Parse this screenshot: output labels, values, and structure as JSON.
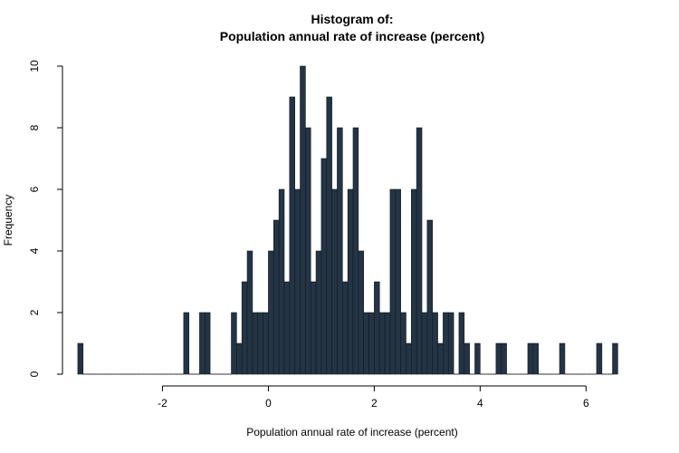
{
  "chart_data": {
    "type": "bar",
    "title_line1": "Histogram of:",
    "title_line2": "Population annual rate of increase (percent)",
    "xlabel": "Population annual rate of increase (percent)",
    "ylabel": "Frequency",
    "xlim": [
      -3.65,
      6.85
    ],
    "ylim": [
      0,
      10
    ],
    "x_ticks": [
      -2,
      0,
      2,
      4,
      6
    ],
    "y_ticks": [
      0,
      2,
      4,
      6,
      8,
      10
    ],
    "bin_start": -3.6,
    "bin_width": 0.1,
    "values": [
      1,
      0,
      0,
      0,
      0,
      0,
      0,
      0,
      0,
      0,
      0,
      0,
      0,
      0,
      0,
      0,
      0,
      0,
      0,
      0,
      2,
      0,
      0,
      2,
      2,
      0,
      0,
      0,
      0,
      2,
      1,
      3,
      4,
      2,
      2,
      2,
      4,
      5,
      6,
      3,
      9,
      6,
      10,
      8,
      3,
      4,
      7,
      9,
      6,
      8,
      3,
      6,
      8,
      4,
      2,
      2,
      3,
      2,
      2,
      6,
      6,
      2,
      1,
      6,
      8,
      2,
      5,
      2,
      1,
      2,
      2,
      0,
      2,
      1,
      0,
      1,
      0,
      0,
      0,
      1,
      1,
      0,
      0,
      0,
      0,
      1,
      1,
      0,
      0,
      0,
      0,
      1,
      0,
      0,
      0,
      0,
      0,
      0,
      1,
      0,
      0,
      1
    ],
    "colors": {
      "bar_fill": "#243444",
      "bar_stroke": "#0f1a24",
      "axis": "#000000"
    }
  }
}
